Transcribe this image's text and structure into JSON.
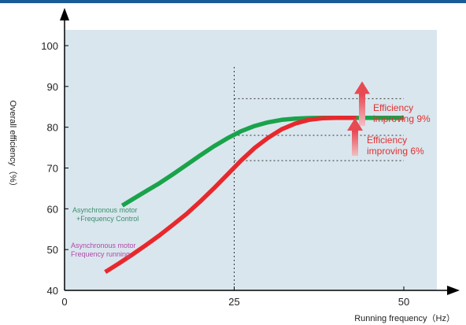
{
  "chart_data": {
    "type": "line",
    "xlabel": "Running frequency（Hz）",
    "ylabel": "Overall efficiency（%）",
    "xlim": [
      0,
      55
    ],
    "ylim": [
      40,
      104
    ],
    "x_ticks": [
      "0",
      "25",
      "50"
    ],
    "y_ticks": [
      "40",
      "50",
      "60",
      "70",
      "80",
      "90",
      "100"
    ],
    "grid": false,
    "series": [
      {
        "name": "Asynchronous motor +Frequency Control",
        "label_lines": [
          "Asynchronous motor",
          "+Frequency Control"
        ],
        "color": "#1aa34a",
        "x": [
          8.5,
          10,
          12,
          14,
          16,
          18,
          20,
          22,
          24,
          26,
          28,
          30,
          32,
          34,
          36,
          38,
          40,
          43,
          46,
          50
        ],
        "y": [
          60.8,
          62.3,
          64.3,
          66.3,
          68.5,
          70.8,
          73.1,
          75.3,
          77.3,
          79.0,
          80.3,
          81.2,
          81.8,
          82.1,
          82.25,
          82.3,
          82.3,
          82.3,
          82.3,
          82.3
        ]
      },
      {
        "name": "Asynchronous motor Frequency running",
        "label_lines": [
          "Asynchronous motor",
          "Frequency running"
        ],
        "color": "#e8282c",
        "x": [
          6,
          8,
          10,
          12,
          14,
          16,
          18,
          20,
          22,
          24,
          26,
          28,
          30,
          32,
          34,
          36,
          38,
          40,
          43
        ],
        "y": [
          44.5,
          46.6,
          48.8,
          51.1,
          53.5,
          56.1,
          58.8,
          61.8,
          65.0,
          68.4,
          71.8,
          74.9,
          77.4,
          79.5,
          80.9,
          81.8,
          82.2,
          82.3,
          82.3
        ]
      }
    ],
    "reference_lines": {
      "vertical_x": 25,
      "horizontal_y": [
        87,
        78,
        71.8
      ]
    },
    "annotations": [
      {
        "lines": [
          "Efficiency",
          "improving 9%"
        ],
        "from_y": 78,
        "to_y": 87
      },
      {
        "lines": [
          "Efficiency",
          "improving 6%"
        ],
        "from_y": 71.8,
        "to_y": 78
      }
    ]
  }
}
